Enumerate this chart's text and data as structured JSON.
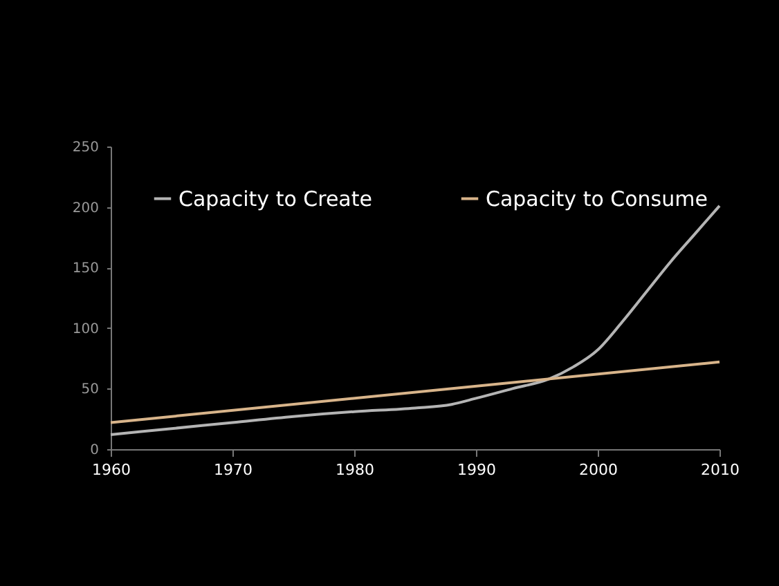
{
  "chart_data": {
    "type": "line",
    "legend": "top left",
    "grid": false,
    "marker": "none",
    "line_style": "solid",
    "xlim": [
      1960,
      2010
    ],
    "xticks": [
      1960,
      1970,
      1980,
      1990,
      2000,
      2010
    ],
    "ylim": [
      0,
      250
    ],
    "yticks": [
      0,
      50,
      100,
      150,
      200,
      250
    ],
    "series": [
      {
        "name": "Capacity to Create",
        "color": "#b4b4b4",
        "x": [
          1960,
          1965,
          1970,
          1975,
          1980,
          1985,
          1988,
          1990,
          1993,
          1996,
          1998,
          2000,
          2002,
          2004,
          2006,
          2008,
          2010
        ],
        "values": [
          12,
          17,
          22,
          27,
          31,
          34,
          37,
          42,
          50,
          58,
          68,
          82,
          105,
          130,
          155,
          178,
          201
        ]
      },
      {
        "name": "Capacity to Consume",
        "color": "#d8b48a",
        "x": [
          1960,
          2010
        ],
        "values": [
          22,
          72
        ]
      }
    ]
  }
}
